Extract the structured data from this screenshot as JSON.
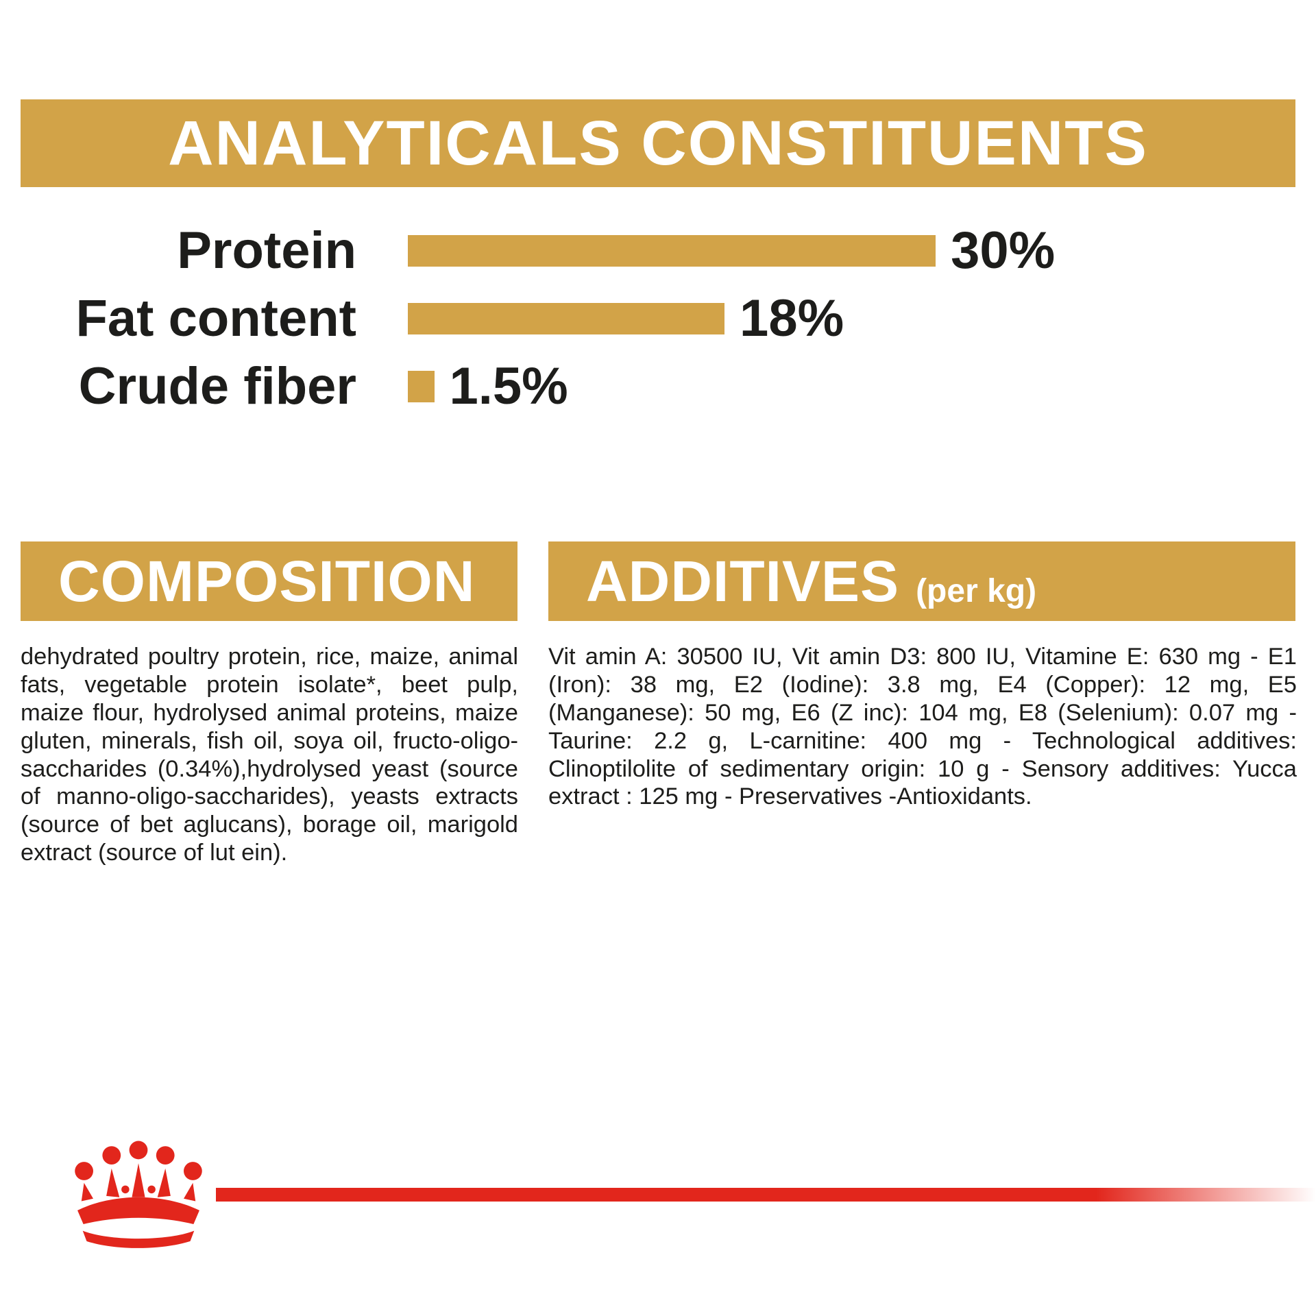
{
  "colors": {
    "gold": "#d2a348",
    "red": "#e2261c",
    "ink": "#1d1d1b",
    "banner_text": "#ffffff"
  },
  "analyticals": {
    "title": "ANALYTICALS CONSTITUENTS",
    "rows": [
      {
        "label": "Protein",
        "value": "30%",
        "pct": 30
      },
      {
        "label": "Fat content",
        "value": "18%",
        "pct": 18
      },
      {
        "label": "Crude fiber",
        "value": "1.5%",
        "pct": 1.5
      }
    ]
  },
  "composition": {
    "title": "COMPOSITION",
    "body": "dehydrated poultry protein, rice, maize, animal fats, vegetable protein isolate*, beet pulp, maize flour, hydrolysed animal proteins, maize gluten, minerals, fish oil, soya oil, fructo-oligo-saccharides (0.34%),hydrolysed yeast (source of manno-oligo-saccharides), yeasts extracts (source of bet aglucans), borage oil, marigold extract (source of lut ein)."
  },
  "additives": {
    "title": "ADDITIVES",
    "suffix": "(per kg)",
    "body": "Vit amin A: 30500 IU, Vit amin D3: 800 IU, Vitamine E: 630 mg - E1 (Iron): 38 mg, E2 (Iodine): 3.8 mg, E4 (Copper): 12 mg, E5 (Manganese): 50 mg, E6 (Z inc): 104 mg, E8 (Selenium): 0.07 mg - Taurine: 2.2 g, L-carnitine: 400 mg - Technological additives: Clinoptilolite of sedimentary origin: 10 g - Sensory additives: Yucca extract : 125 mg - Preservatives -Antioxidants."
  },
  "logo": {
    "name": "royal-canin-crown-logo"
  },
  "chart_data": {
    "type": "bar",
    "orientation": "horizontal",
    "title": "ANALYTICALS CONSTITUENTS",
    "categories": [
      "Protein",
      "Fat content",
      "Crude fiber"
    ],
    "values": [
      30,
      18,
      1.5
    ],
    "unit": "%",
    "xlim": [
      0,
      30
    ],
    "grid": false,
    "legend": false,
    "bar_color": "#d2a348"
  }
}
